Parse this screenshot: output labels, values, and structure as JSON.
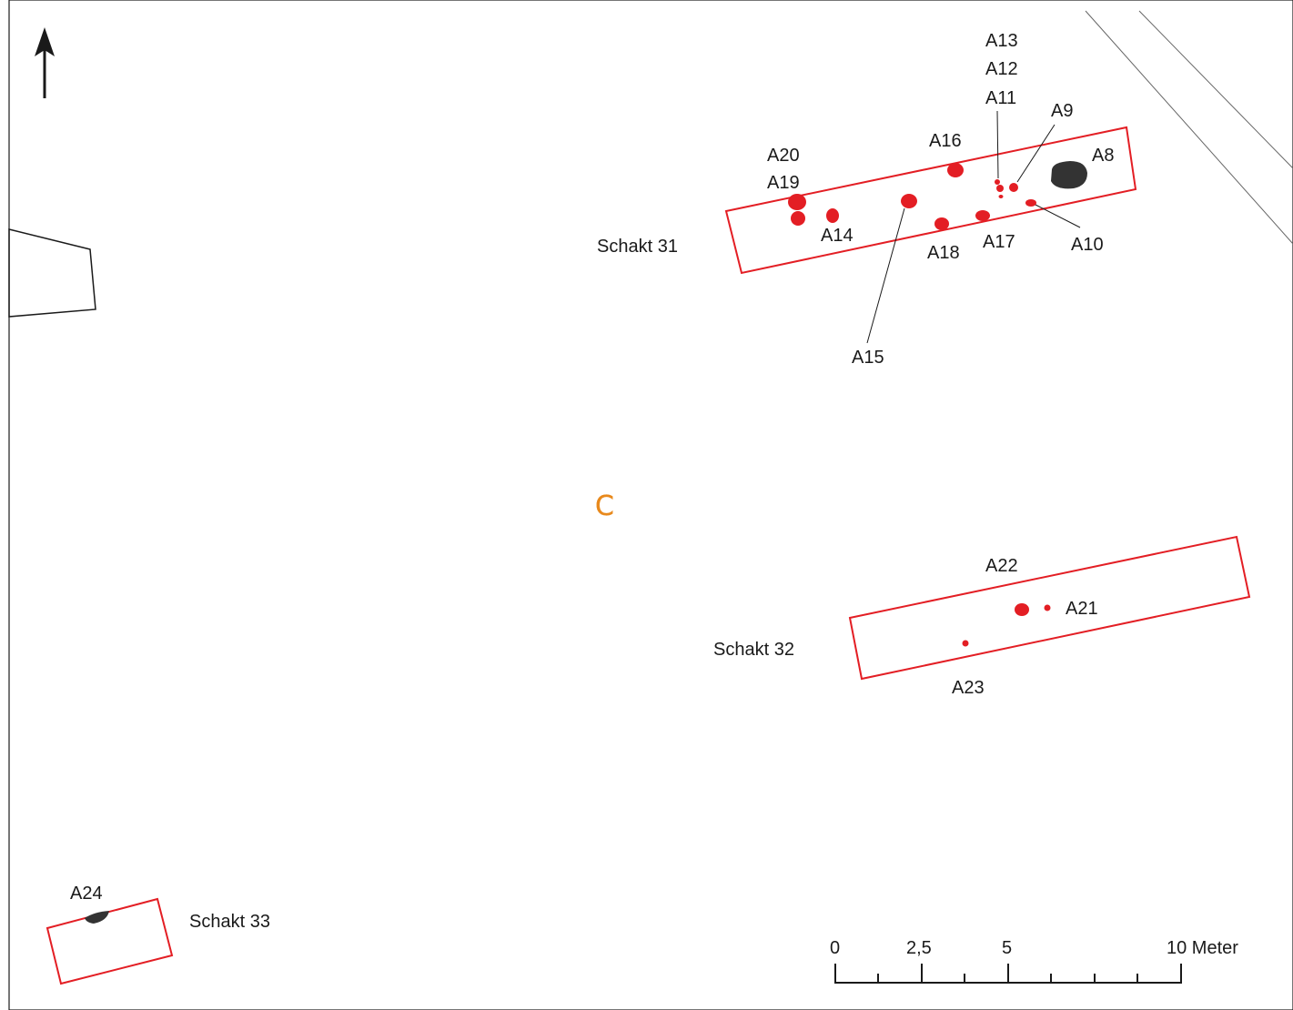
{
  "map": {
    "area_label": "C",
    "colors": {
      "trench": "#e31e24",
      "feature_red": "#e31e24",
      "feature_dark": "#333333",
      "line": "#1a1a1a",
      "area_label": "#e8891c"
    },
    "north_arrow": "north-arrow-icon",
    "trenches": [
      {
        "label": "Schakt 31"
      },
      {
        "label": "Schakt 32"
      },
      {
        "label": "Schakt 33"
      }
    ],
    "features": {
      "a8": "A8",
      "a9": "A9",
      "a10": "A10",
      "a11": "A11",
      "a12": "A12",
      "a13": "A13",
      "a14": "A14",
      "a15": "A15",
      "a16": "A16",
      "a17": "A17",
      "a18": "A18",
      "a19": "A19",
      "a20": "A20",
      "a21": "A21",
      "a22": "A22",
      "a23": "A23",
      "a24": "A24"
    },
    "scale_bar": {
      "ticks": [
        "0",
        "2,5",
        "5",
        "10 Meter"
      ]
    }
  }
}
